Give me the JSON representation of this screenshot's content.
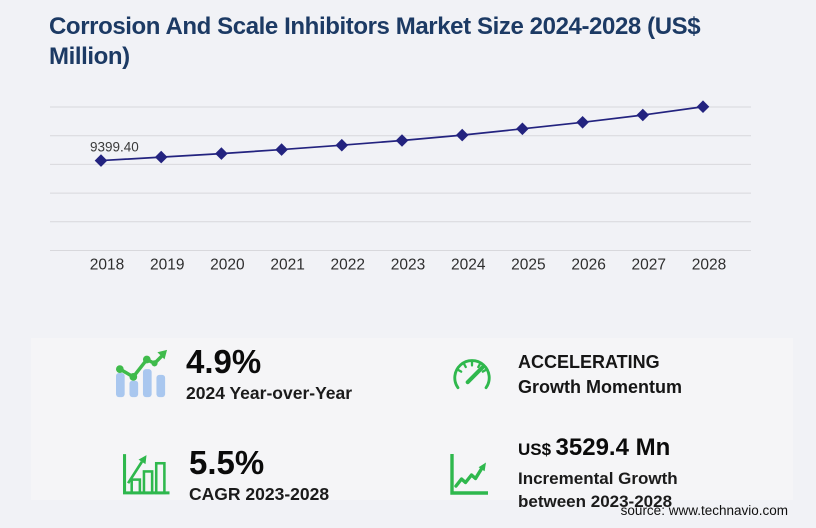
{
  "title": {
    "text": "Corrosion And Scale Inhibitors Market Size 2024-2028 (US$ Million)"
  },
  "chart_data": {
    "type": "line",
    "title": "Corrosion And Scale Inhibitors Market Size 2024-2028 (US$ Million)",
    "x": [
      2018,
      2019,
      2020,
      2021,
      2022,
      2023,
      2024,
      2025,
      2026,
      2027,
      2028
    ],
    "series": [
      {
        "name": "Market size (US$ Million)",
        "values": [
          9399.4,
          9760,
          10130,
          10550,
          11010,
          11498.5,
          12062,
          12720,
          13400,
          14160,
          15027.9
        ]
      }
    ],
    "point_label": {
      "x": 2018,
      "text": "9399.40"
    },
    "xlabel": "",
    "ylabel": "",
    "ylim": [
      0,
      16000
    ],
    "gridline_values": [
      0,
      3000,
      6000,
      9000,
      12000,
      15000
    ],
    "grid": true,
    "legend": false,
    "marker": "diamond",
    "line_color": "#23237f"
  },
  "stats": {
    "yoy": {
      "value": "4.9%",
      "label": "2024 Year-over-Year",
      "icon": "bar-trend-icon"
    },
    "momentum": {
      "line1": "ACCELERATING",
      "line2": "Growth Momentum",
      "icon": "gauge-icon"
    },
    "cagr": {
      "value": "5.5%",
      "label": "CAGR 2023-2028",
      "icon": "growth-bars-icon"
    },
    "incremental": {
      "currency": "US$",
      "value": "3529.4 Mn",
      "label_line1": "Incremental Growth",
      "label_line2": "between 2023-2028",
      "icon": "line-chart-axis-icon"
    }
  },
  "source": {
    "text": "source: www.technavio.com"
  },
  "colors": {
    "title": "#1c3a64",
    "line": "#23237f",
    "grid": "#d8d8dc",
    "green_accent": "#2fb84d",
    "light_blue_bars": "#a9c7ef",
    "page_bg": "#f1f2f6",
    "panel_bg": "#f5f5f7",
    "text_dark": "#111111"
  }
}
